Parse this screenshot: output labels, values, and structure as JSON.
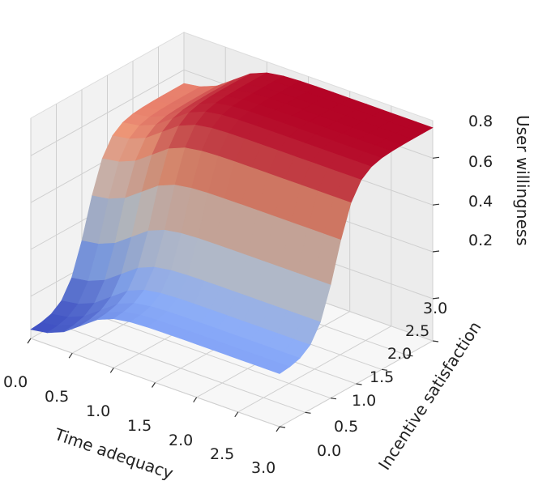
{
  "chart_data": {
    "type": "surface3d",
    "title": "",
    "xlabel": "Time adequacy",
    "ylabel": "Incentive satisfaction",
    "zlabel": "User willingness",
    "x_ticks": [
      "0.0",
      "0.5",
      "1.0",
      "1.5",
      "2.0",
      "2.5",
      "3.0"
    ],
    "y_ticks": [
      "0.0",
      "0.5",
      "1.0",
      "1.5",
      "2.0",
      "2.5",
      "3.0"
    ],
    "z_ticks": [
      "0.2",
      "0.4",
      "0.6",
      "0.8"
    ],
    "xlim": [
      0,
      3
    ],
    "ylim": [
      0,
      3
    ],
    "zlim": [
      0.02,
      0.96
    ],
    "colormap": "coolwarm",
    "grid": true,
    "surface": {
      "x": [
        0,
        0.2,
        0.4,
        0.6,
        0.8,
        1.0,
        1.2,
        1.4,
        1.6,
        1.8,
        2.0,
        2.2,
        2.4,
        2.6,
        2.8,
        3.0
      ],
      "y": [
        0,
        0.2,
        0.4,
        0.6,
        0.8,
        1.0,
        1.2,
        1.4,
        1.6,
        1.8,
        2.0,
        2.2,
        2.4,
        2.6,
        2.8,
        3.0
      ],
      "z_min": 0.05,
      "z_max": 0.93,
      "x_midpoint": 0.6,
      "y_midpoint": 1.1
    }
  }
}
